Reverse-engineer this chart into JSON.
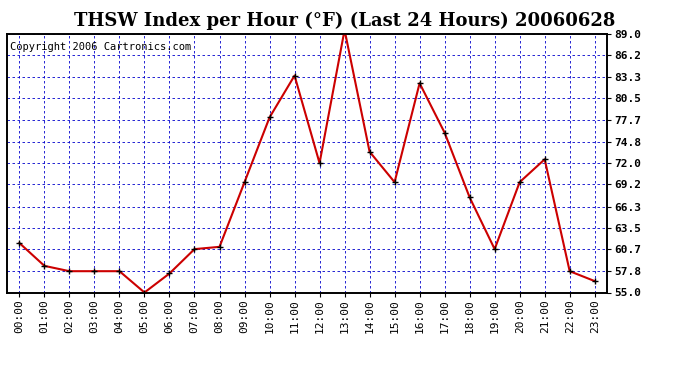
{
  "title": "THSW Index per Hour (°F) (Last 24 Hours) 20060628",
  "copyright": "Copyright 2006 Cartronics.com",
  "hours": [
    0,
    1,
    2,
    3,
    4,
    5,
    6,
    7,
    8,
    9,
    10,
    11,
    12,
    13,
    14,
    15,
    16,
    17,
    18,
    19,
    20,
    21,
    22,
    23
  ],
  "hour_labels": [
    "00:00",
    "01:00",
    "02:00",
    "03:00",
    "04:00",
    "05:00",
    "06:00",
    "07:00",
    "08:00",
    "09:00",
    "10:00",
    "11:00",
    "12:00",
    "13:00",
    "14:00",
    "15:00",
    "16:00",
    "17:00",
    "18:00",
    "19:00",
    "20:00",
    "21:00",
    "22:00",
    "23:00"
  ],
  "values": [
    61.5,
    58.5,
    57.8,
    57.8,
    57.8,
    55.0,
    57.5,
    60.7,
    61.0,
    69.5,
    78.0,
    83.5,
    72.0,
    89.5,
    73.5,
    69.5,
    82.5,
    76.0,
    67.5,
    60.7,
    69.5,
    72.5,
    57.8,
    56.5
  ],
  "ylim": [
    55.0,
    89.0
  ],
  "yticks": [
    55.0,
    57.8,
    60.7,
    63.5,
    66.3,
    69.2,
    72.0,
    74.8,
    77.7,
    80.5,
    83.3,
    86.2,
    89.0
  ],
  "line_color": "#cc0000",
  "marker_color": "#000000",
  "bg_color": "#ffffff",
  "plot_bg": "#ffffff",
  "grid_color": "#0000cc",
  "border_color": "#000000",
  "title_color": "#000000",
  "copyright_color": "#000000",
  "font_size_title": 13,
  "font_size_ticks": 8,
  "font_size_copyright": 7.5
}
